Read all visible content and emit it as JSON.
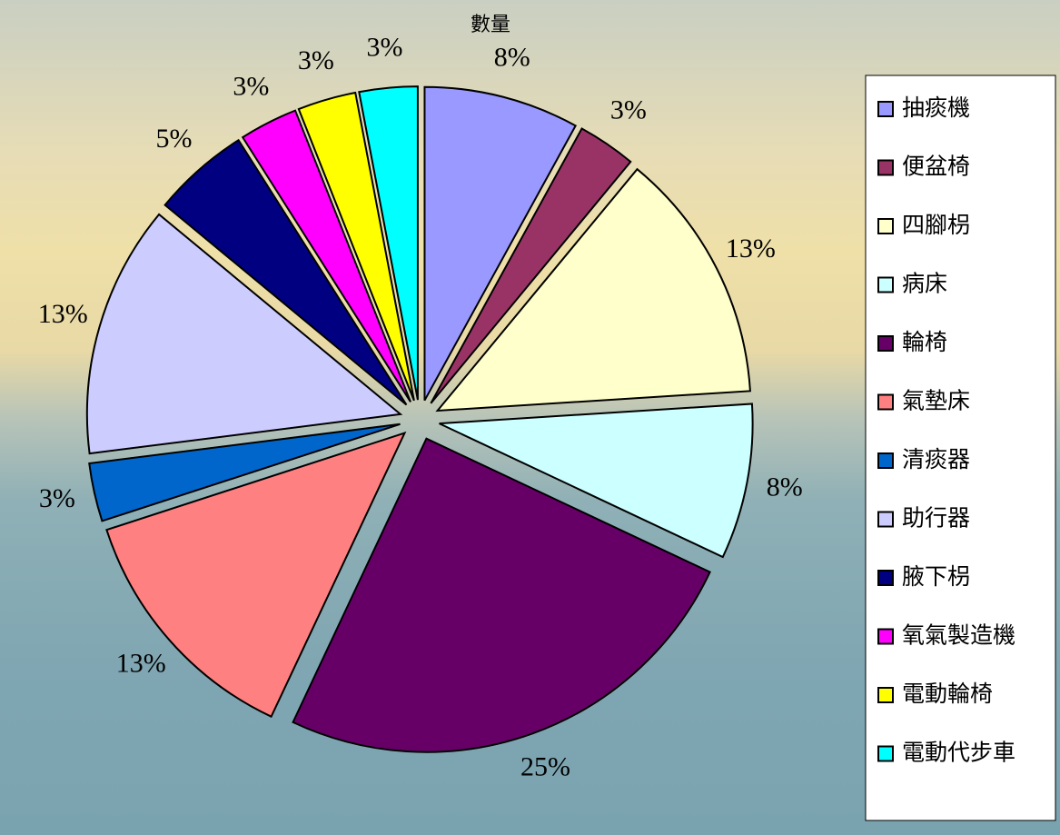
{
  "chart_data": {
    "type": "pie",
    "title": "數量",
    "categories": [
      "抽痰機",
      "便盆椅",
      "四腳枴",
      "病床",
      "輪椅",
      "氣墊床",
      "清痰器",
      "助行器",
      "腋下枴",
      "氧氣製造機",
      "電動輪椅",
      "電動代步車"
    ],
    "values": [
      8,
      3,
      13,
      8,
      25,
      13,
      3,
      13,
      5,
      3,
      3,
      3
    ],
    "value_labels": [
      "8%",
      "3%",
      "13%",
      "8%",
      "25%",
      "13%",
      "3%",
      "13%",
      "5%",
      "3%",
      "3%",
      "3%"
    ],
    "colors": [
      "#9999ff",
      "#993366",
      "#ffffcc",
      "#ccffff",
      "#660066",
      "#ff8080",
      "#0066cc",
      "#ccccff",
      "#000080",
      "#ff00ff",
      "#ffff00",
      "#00ffff"
    ],
    "legend": "right"
  }
}
